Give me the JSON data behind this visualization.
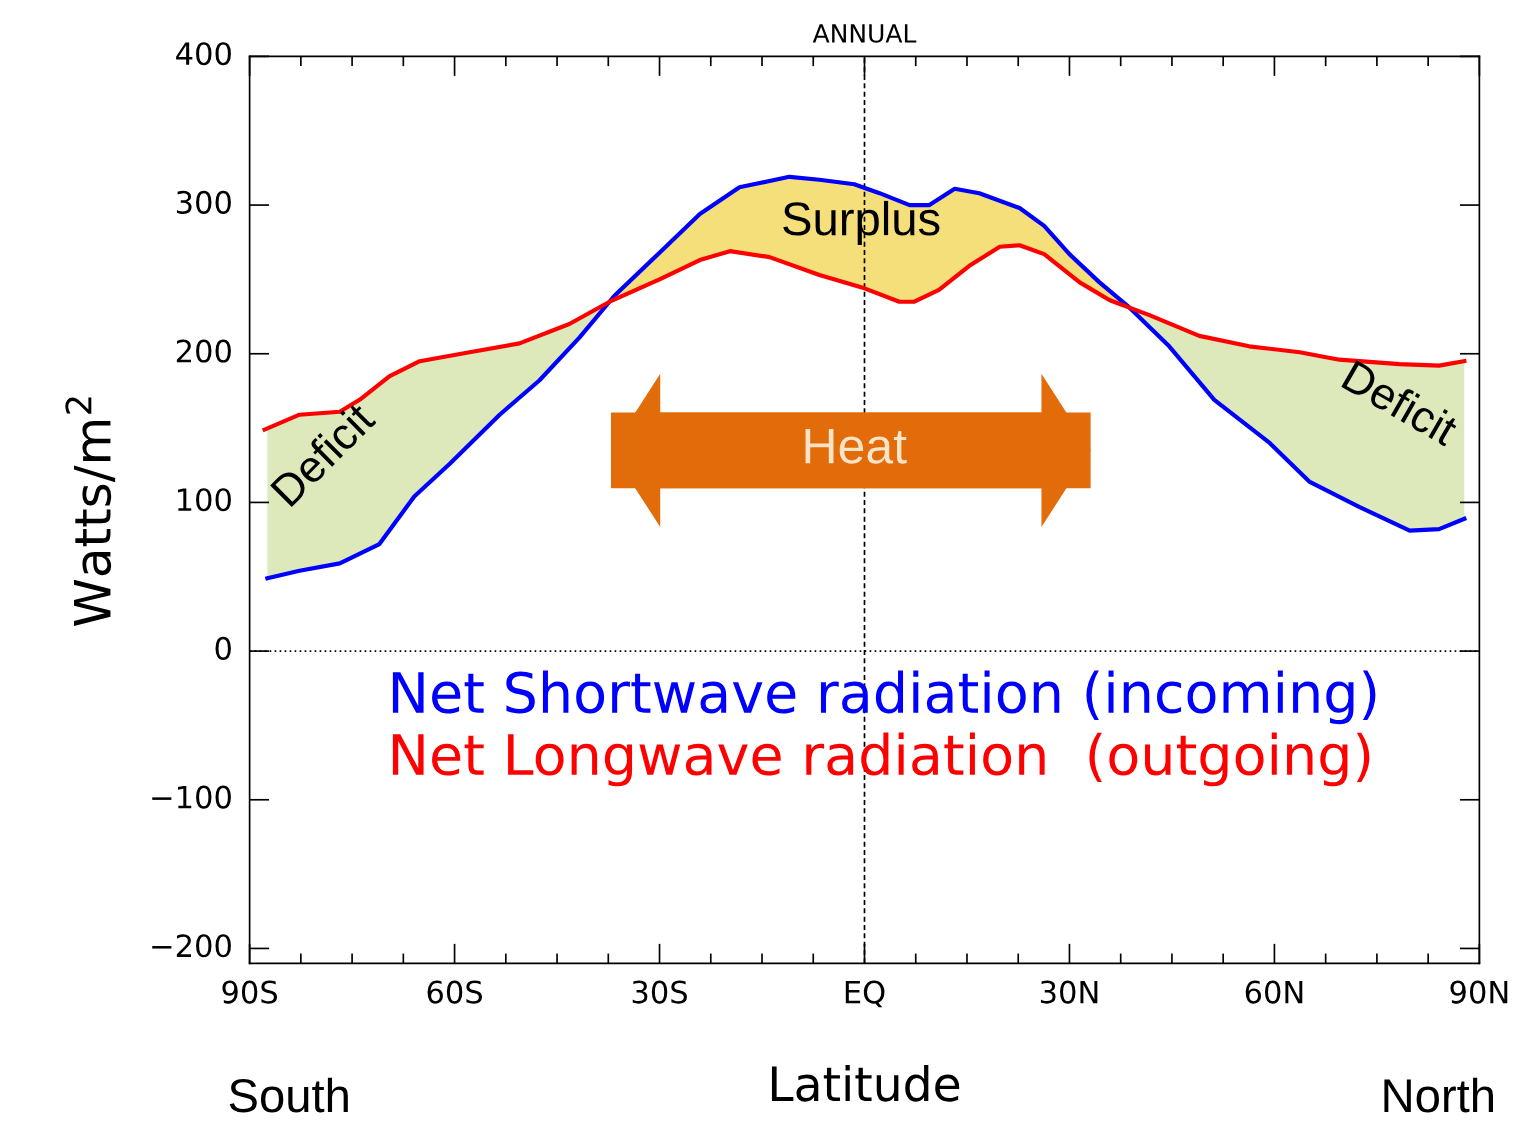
{
  "chart_data": {
    "type": "line",
    "title": "ANNUAL",
    "xlabel": "Latitude",
    "ylabel": "Watts/m$^{2}$",
    "xlim": [
      -90,
      90
    ],
    "ylim": [
      -210,
      400
    ],
    "xticks": [
      {
        "value": -90,
        "label": "90S"
      },
      {
        "value": -60,
        "label": "60S"
      },
      {
        "value": -30,
        "label": "30S"
      },
      {
        "value": 0,
        "label": "EQ"
      },
      {
        "value": 30,
        "label": "30N"
      },
      {
        "value": 60,
        "label": "60N"
      },
      {
        "value": 90,
        "label": "90N"
      }
    ],
    "yticks": [
      {
        "value": -200,
        "label": "−200"
      },
      {
        "value": -100,
        "label": "−100"
      },
      0,
      100,
      200,
      300,
      400
    ],
    "series": [
      {
        "name": "Net Shortwave radiation (incoming)",
        "color": "#0000ff",
        "x": [
          -87.4,
          -82.7,
          -76.8,
          -71,
          -65.9,
          -60.7,
          -53.4,
          -47.6,
          -41.7,
          -36.6,
          -30,
          -24.1,
          -18.3,
          -11,
          -6.6,
          -1.5,
          2.2,
          6.6,
          9.5,
          13.2,
          16.8,
          22.7,
          26.3,
          30,
          34.4,
          38.8,
          44.6,
          51.2,
          59.3,
          65.1,
          72.4,
          79.8,
          84.1,
          87.8
        ],
        "values": [
          49,
          54,
          59,
          72,
          104,
          126,
          159,
          182,
          211,
          239,
          268,
          294,
          312,
          319,
          317,
          314,
          308,
          300,
          300,
          311,
          308,
          298,
          286,
          267,
          248,
          231,
          205,
          169,
          140,
          114,
          97,
          81,
          82,
          89
        ]
      },
      {
        "name": "Net Longwave radiation  (outgoing)",
        "color": "#ff0000",
        "x": [
          -87.8,
          -82.7,
          -76.8,
          -73.9,
          -69.5,
          -65.1,
          -57.8,
          -50.5,
          -43.2,
          -37.3,
          -30,
          -24.1,
          -19.7,
          -13.9,
          -6.6,
          0,
          5.1,
          7.3,
          10.9,
          15.3,
          19.8,
          22.7,
          26.3,
          31.5,
          35.9,
          41.7,
          49,
          56.3,
          63.7,
          69.5,
          78.3,
          84.1,
          87.8
        ],
        "values": [
          149,
          159,
          161,
          169,
          185,
          195,
          201,
          207,
          220,
          235,
          250,
          263,
          269,
          265,
          253,
          244,
          235,
          235,
          243,
          259,
          272,
          273,
          267,
          248,
          236,
          226,
          212,
          205,
          201,
          196,
          193,
          192,
          195
        ]
      }
    ],
    "ref_lines": [
      {
        "axis": "x",
        "value": 0,
        "line_style": "dashed",
        "color": "#000000"
      },
      {
        "axis": "y",
        "value": 0,
        "line_style": "dotted",
        "color": "#000000"
      }
    ],
    "annotations": [
      "Surplus",
      "Deficit",
      "Deficit",
      "Heat",
      "South",
      "North"
    ],
    "legend": "bottom right",
    "grid": false,
    "marker": "none",
    "line_style": "solid"
  }
}
